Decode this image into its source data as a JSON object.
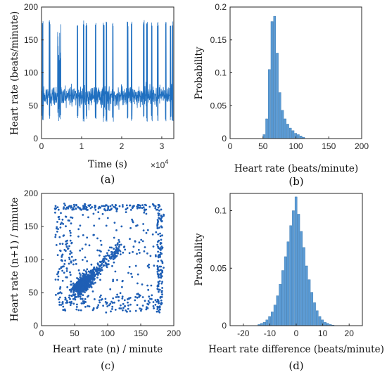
{
  "chart_data": [
    {
      "type": "line",
      "panel_label": "(a)",
      "xlabel": "Time (s)",
      "ylabel": "Heart rate (beats/minute)",
      "x_multiplier": "×10",
      "x_multiplier_exp": "4",
      "xlim": [
        0,
        3.3
      ],
      "ylim": [
        0,
        200
      ],
      "xticks": [
        "0",
        "1",
        "2",
        "3"
      ],
      "yticks": [
        "0",
        "50",
        "100",
        "150",
        "200"
      ],
      "series_color": "#1f6fc0",
      "baseline": {
        "mean": 65,
        "spread": 10
      },
      "spike_clusters": [
        0.03,
        0.2,
        0.42,
        0.47,
        0.9,
        1.05,
        1.12,
        1.35,
        1.55,
        1.62,
        1.78,
        2.15,
        2.25,
        2.55,
        2.63,
        2.75,
        2.9,
        3.1,
        3.22,
        3.27
      ],
      "series_x_units": "×10^4 s",
      "series_y_range": [
        20,
        185
      ]
    },
    {
      "type": "bar",
      "panel_label": "(b)",
      "xlabel": "Heart rate (beats/minute)",
      "ylabel": "Probability",
      "xlim": [
        0,
        200
      ],
      "ylim": [
        0,
        0.2
      ],
      "xticks": [
        "0",
        "50",
        "100",
        "150",
        "200"
      ],
      "yticks": [
        "0",
        "0.05",
        "0.1",
        "0.15",
        "0.2"
      ],
      "bar_color": "#5b9bd5",
      "bins": [
        50,
        54,
        58,
        62,
        66,
        70,
        74,
        78,
        82,
        86,
        90,
        94,
        98,
        102,
        106,
        110
      ],
      "values": [
        0.006,
        0.03,
        0.105,
        0.178,
        0.186,
        0.13,
        0.07,
        0.043,
        0.03,
        0.022,
        0.016,
        0.012,
        0.008,
        0.006,
        0.004,
        0.002
      ]
    },
    {
      "type": "scatter",
      "panel_label": "(c)",
      "xlabel": "Heart rate (n) / minute",
      "ylabel": "Heart rate (n+1) / minute",
      "xlim": [
        0,
        200
      ],
      "ylim": [
        0,
        200
      ],
      "xticks": [
        "0",
        "50",
        "100",
        "150",
        "200"
      ],
      "yticks": [
        "0",
        "50",
        "100",
        "150",
        "200"
      ],
      "point_color": "#1f5fb5",
      "cluster_center": [
        65,
        65
      ]
    },
    {
      "type": "bar",
      "panel_label": "(d)",
      "xlabel": "Heart rate difference (beats/minute)",
      "ylabel": "Probability",
      "xlim": [
        -25,
        25
      ],
      "ylim": [
        0,
        0.115
      ],
      "xticks": [
        "-20",
        "-10",
        "0",
        "10",
        "20"
      ],
      "yticks": [
        "0",
        "0.05",
        "0.1"
      ],
      "bar_color": "#5b9bd5",
      "bins": [
        -14,
        -13,
        -12,
        -11,
        -10,
        -9,
        -8,
        -7,
        -6,
        -5,
        -4,
        -3,
        -2,
        -1,
        0,
        1,
        2,
        3,
        4,
        5,
        6,
        7,
        8,
        9,
        10,
        11,
        12,
        13,
        14
      ],
      "values": [
        0.001,
        0.002,
        0.003,
        0.005,
        0.008,
        0.012,
        0.018,
        0.026,
        0.036,
        0.048,
        0.06,
        0.073,
        0.087,
        0.1,
        0.112,
        0.097,
        0.082,
        0.068,
        0.052,
        0.04,
        0.029,
        0.02,
        0.013,
        0.008,
        0.005,
        0.003,
        0.002,
        0.001,
        0.0005
      ]
    }
  ]
}
